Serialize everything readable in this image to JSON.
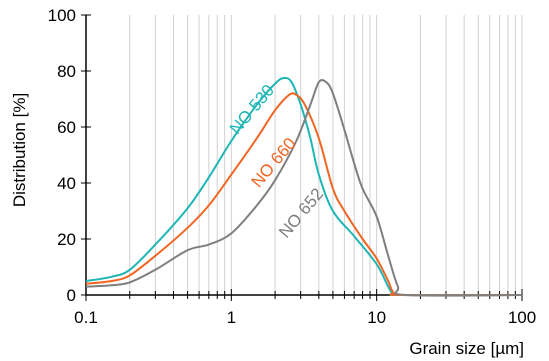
{
  "chart_data": {
    "type": "line",
    "xlabel": "Grain size [µm]",
    "ylabel": "Distribution [%]",
    "xscale": "log",
    "xlim": [
      0.1,
      100
    ],
    "ylim": [
      0,
      100
    ],
    "grid": "vertical minor log gridlines",
    "x_ticks": [
      {
        "value": 0.1,
        "label": "0.1"
      },
      {
        "value": 1,
        "label": "1"
      },
      {
        "value": 10,
        "label": "10"
      },
      {
        "value": 100,
        "label": "100"
      }
    ],
    "y_ticks": [
      {
        "value": 0,
        "label": "0"
      },
      {
        "value": 20,
        "label": "20"
      },
      {
        "value": 40,
        "label": "40"
      },
      {
        "value": 60,
        "label": "60"
      },
      {
        "value": 80,
        "label": "80"
      },
      {
        "value": 100,
        "label": "100"
      }
    ],
    "series": [
      {
        "name": "NO 530",
        "color": "#1fb5b5",
        "label_angle": -50,
        "label_anchor": {
          "x": 1.1,
          "y": 57
        },
        "points": [
          [
            0.1,
            5
          ],
          [
            0.15,
            6.5
          ],
          [
            0.2,
            9
          ],
          [
            0.3,
            18
          ],
          [
            0.5,
            31
          ],
          [
            0.7,
            42
          ],
          [
            1.0,
            55
          ],
          [
            1.5,
            68
          ],
          [
            2.0,
            75.5
          ],
          [
            2.3,
            77.5
          ],
          [
            2.6,
            76
          ],
          [
            3.0,
            68
          ],
          [
            3.5,
            56
          ],
          [
            4.0,
            43
          ],
          [
            5.0,
            30
          ],
          [
            7.0,
            21
          ],
          [
            10.0,
            11
          ],
          [
            12.0,
            3
          ],
          [
            13.0,
            0.5
          ],
          [
            15.0,
            0
          ],
          [
            100,
            0
          ]
        ]
      },
      {
        "name": "NO 660",
        "color": "#f26522",
        "label_angle": -50,
        "label_anchor": {
          "x": 1.55,
          "y": 38
        },
        "points": [
          [
            0.1,
            4
          ],
          [
            0.15,
            5
          ],
          [
            0.2,
            7
          ],
          [
            0.3,
            14
          ],
          [
            0.5,
            24
          ],
          [
            0.7,
            32
          ],
          [
            1.0,
            43
          ],
          [
            1.5,
            56
          ],
          [
            2.0,
            66
          ],
          [
            2.5,
            71.5
          ],
          [
            2.8,
            71.5
          ],
          [
            3.2,
            68
          ],
          [
            4.0,
            56
          ],
          [
            5.0,
            38
          ],
          [
            6.0,
            30
          ],
          [
            8.0,
            20
          ],
          [
            10.0,
            13
          ],
          [
            12.0,
            5
          ],
          [
            13.0,
            1
          ],
          [
            15.0,
            0
          ],
          [
            100,
            0
          ]
        ]
      },
      {
        "name": "NO 652",
        "color": "#7f7f7f",
        "label_angle": -50,
        "label_anchor": {
          "x": 2.4,
          "y": 20
        },
        "points": [
          [
            0.1,
            3
          ],
          [
            0.15,
            3.5
          ],
          [
            0.2,
            4.5
          ],
          [
            0.3,
            9
          ],
          [
            0.5,
            16
          ],
          [
            0.7,
            18
          ],
          [
            1.0,
            22
          ],
          [
            1.5,
            32
          ],
          [
            2.0,
            41
          ],
          [
            2.8,
            55
          ],
          [
            3.5,
            68
          ],
          [
            4.0,
            76
          ],
          [
            4.5,
            76
          ],
          [
            5.0,
            72
          ],
          [
            6.0,
            59
          ],
          [
            7.0,
            47
          ],
          [
            8.0,
            38
          ],
          [
            10.0,
            28
          ],
          [
            12.0,
            14
          ],
          [
            14.0,
            3
          ],
          [
            16.0,
            0
          ],
          [
            100,
            0
          ]
        ]
      }
    ]
  }
}
